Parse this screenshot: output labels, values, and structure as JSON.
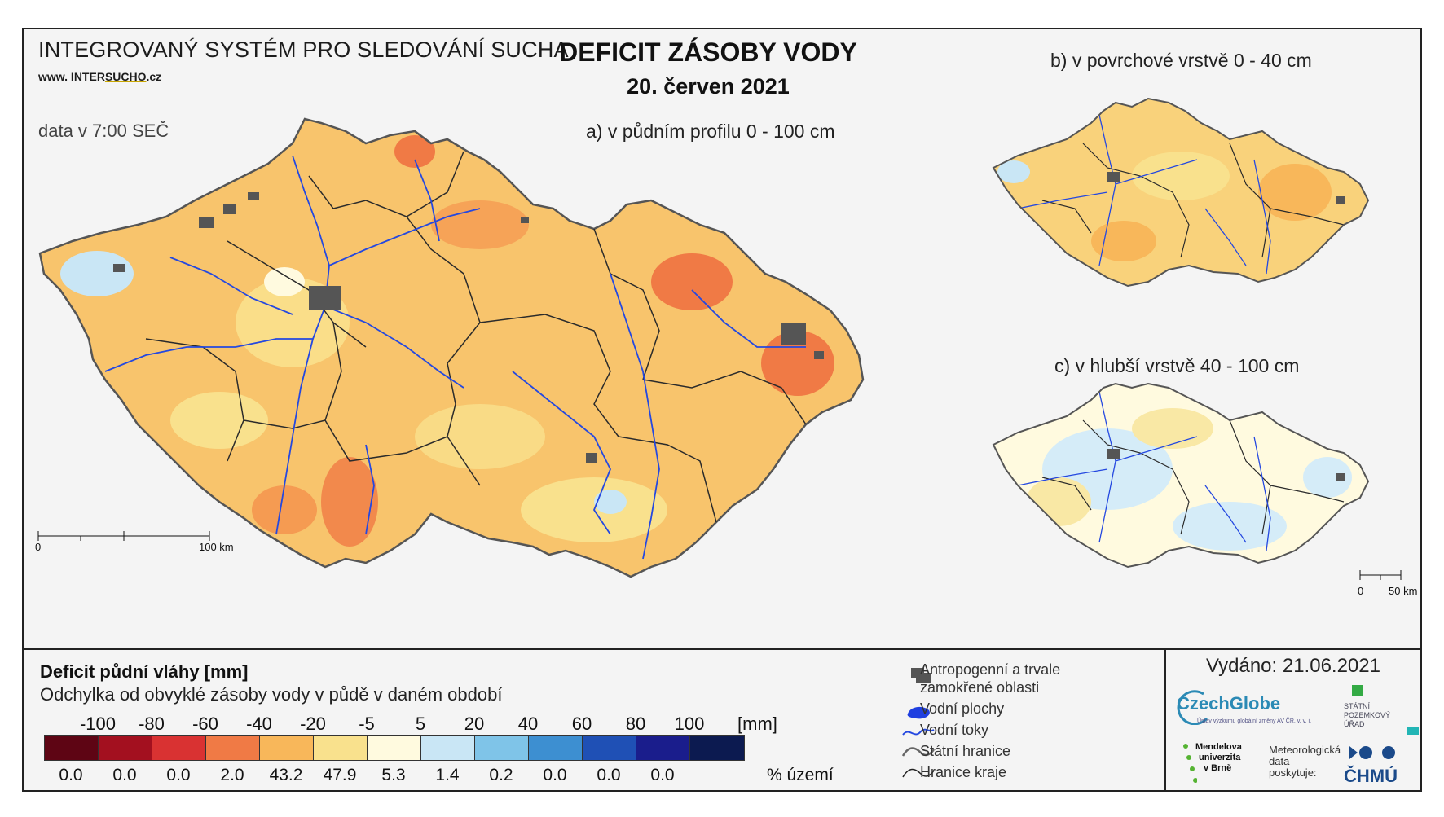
{
  "header": {
    "system_title": "INTEGROVANÝ SYSTÉM PRO SLEDOVÁNÍ SUCHA",
    "website_prefix": "www. INTER",
    "website_highlight": "SUCHO",
    "website_suffix": ".cz",
    "time_note": "data v 7:00 SEČ",
    "main_title": "DEFICIT ZÁSOBY VODY",
    "date": "20. červen 2021"
  },
  "maps": {
    "a_title": "a) v půdním profilu 0 - 100 cm",
    "b_title": "b) v povrchové vrstvě 0 - 40 cm",
    "c_title": "c) v hlubší vrstvě 40 - 100 cm",
    "scale_a": {
      "start": "0",
      "end": "100 km"
    },
    "scale_c": {
      "start": "0",
      "end": "50 km"
    }
  },
  "legend": {
    "title": "Deficit půdní vláhy  [mm]",
    "subtitle": "Odchylka od obvyklé zásoby vody v půdě v daném období",
    "bounds": [
      "-100",
      "-80",
      "-60",
      "-40",
      "-20",
      "-5",
      "5",
      "20",
      "40",
      "60",
      "80",
      "100"
    ],
    "unit": "[mm]",
    "colors": [
      "#5e0514",
      "#a3101f",
      "#d93232",
      "#f07a45",
      "#f8b75a",
      "#f9e18d",
      "#fffadf",
      "#c9e6f5",
      "#7fc4e8",
      "#3d8fd1",
      "#1f50b5",
      "#1a1d8c",
      "#0c1a50"
    ],
    "percentages": [
      "0.0",
      "0.0",
      "0.0",
      "2.0",
      "43.2",
      "47.9",
      "5.3",
      "1.4",
      "0.2",
      "0.0",
      "0.0",
      "0.0"
    ],
    "pct_unit": "% území"
  },
  "symbols": {
    "anthro": "Antropogenní a trvale",
    "anthro2": "zamokřené oblasti",
    "water_bodies": "Vodní plochy",
    "streams": "Vodní toky",
    "state_border": "Státní hranice",
    "region_border": "Hranice kraje"
  },
  "footer": {
    "issued": "Vydáno: 21.06.2021",
    "logo_czechglobe": "CzechGlobe",
    "logo_czechglobe_sub": "Ústav výzkumu globální změny AV ČR, v. v. i.",
    "logo_spu_1": "STÁTNÍ",
    "logo_spu_2": "POZEMKOVÝ",
    "logo_spu_3": "ÚŘAD",
    "logo_mendel_1": "Mendelova",
    "logo_mendel_2": "univerzita",
    "logo_mendel_3": "v Brně",
    "meteo_1": "Meteorologická",
    "meteo_2": "data",
    "meteo_3": "poskytuje:",
    "logo_chmu": "ČHMÚ"
  }
}
